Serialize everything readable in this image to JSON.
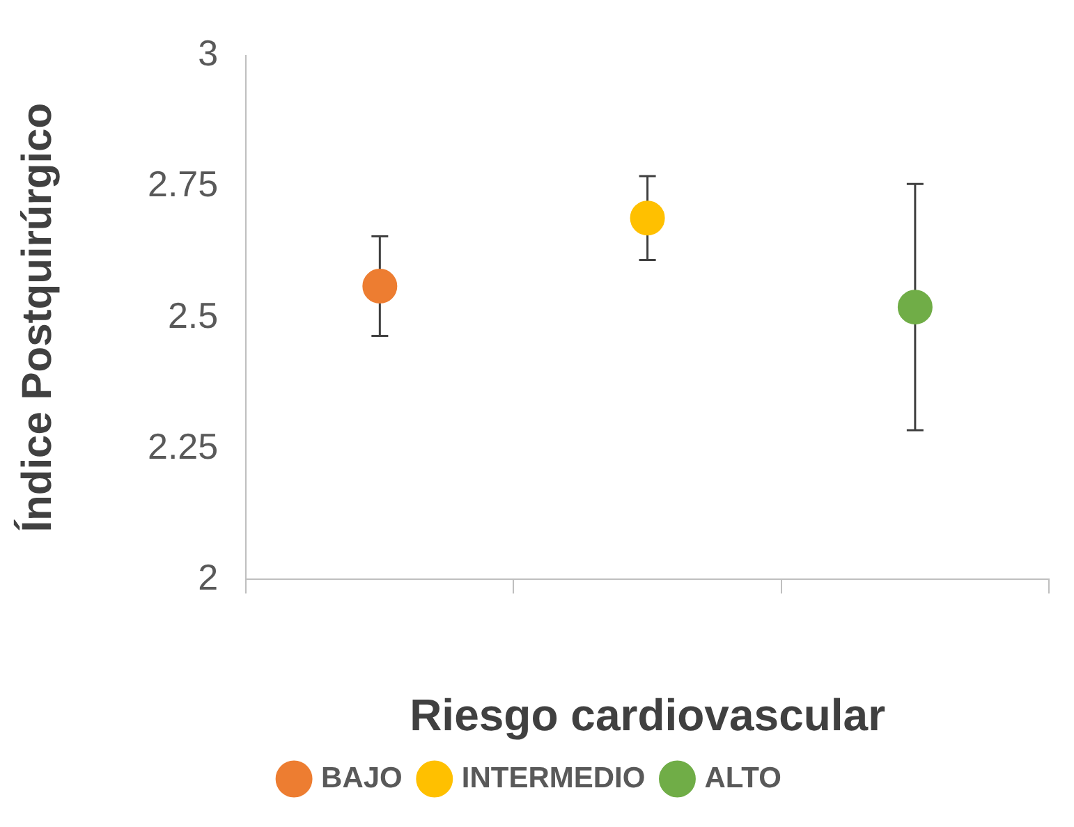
{
  "chart_data": {
    "type": "scatter",
    "xlabel": "Riesgo cardiovascular",
    "ylabel": "Índice Postquirúrgico",
    "categories": [
      null,
      null,
      null
    ],
    "ylim": [
      2,
      3
    ],
    "yticks": [
      2,
      2.25,
      2.5,
      2.75,
      3
    ],
    "grid": false,
    "legend": "bottom",
    "marker": "circle",
    "series": [
      {
        "name": "BAJO",
        "color": "#ed7d31",
        "values": [
          2.56,
          null,
          null
        ],
        "errors": [
          0.095,
          null,
          null
        ]
      },
      {
        "name": "INTERMEDIO",
        "color": "#ffc000",
        "values": [
          null,
          2.69,
          null
        ],
        "errors": [
          null,
          0.08,
          null
        ]
      },
      {
        "name": "ALTO",
        "color": "#70ad47",
        "values": [
          null,
          null,
          2.52
        ],
        "errors": [
          null,
          null,
          0.235
        ]
      }
    ]
  }
}
